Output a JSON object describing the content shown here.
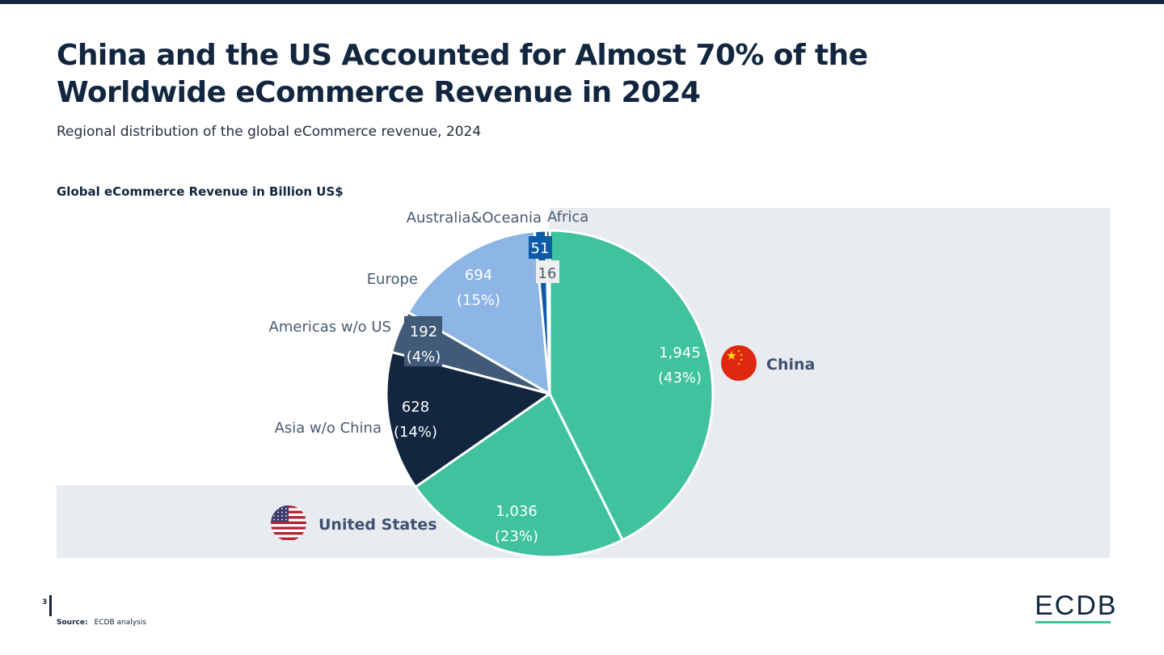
{
  "header": {
    "title": "China and the US Accounted for Almost 70% of the Worldwide eCommerce Revenue in 2024",
    "subtitle": "Regional distribution of the global eCommerce revenue, 2024"
  },
  "chart_heading": "Global eCommerce Revenue in Billion US$",
  "chart_data": {
    "type": "pie",
    "title": "Global eCommerce Revenue in Billion US$",
    "unit": "Billion US$",
    "slices": [
      {
        "label": "China",
        "value": 1945,
        "value_text": "1,945",
        "pct_text": "(43%)",
        "color": "#3fc29d"
      },
      {
        "label": "United States",
        "value": 1036,
        "value_text": "1,036",
        "pct_text": "(23%)",
        "color": "#3fc29d"
      },
      {
        "label": "Asia w/o China",
        "value": 628,
        "value_text": "628",
        "pct_text": "(14%)",
        "color": "#12263f"
      },
      {
        "label": "Americas w/o US",
        "value": 192,
        "value_text": "192",
        "pct_text": "(4%)",
        "color": "#415a77"
      },
      {
        "label": "Europe",
        "value": 694,
        "value_text": "694",
        "pct_text": "(15%)",
        "color": "#8db5e6"
      },
      {
        "label": "Australia&Oceania",
        "value": 51,
        "value_text": "51",
        "pct_text": "",
        "color": "#0d5aa7"
      },
      {
        "label": "Africa",
        "value": 16,
        "value_text": "16",
        "pct_text": "",
        "color": "#12263f"
      }
    ],
    "highlights": [
      "China",
      "United States"
    ],
    "colors": {
      "highlight_band": "#e8ecf1",
      "china_flag": "#de2910",
      "us_flag_red": "#b22234",
      "us_flag_blue": "#3c3b6e"
    }
  },
  "footer": {
    "page_number": "3",
    "source_label": "Source:",
    "source_text": "ECDB analysis",
    "logo": "ECDB"
  }
}
